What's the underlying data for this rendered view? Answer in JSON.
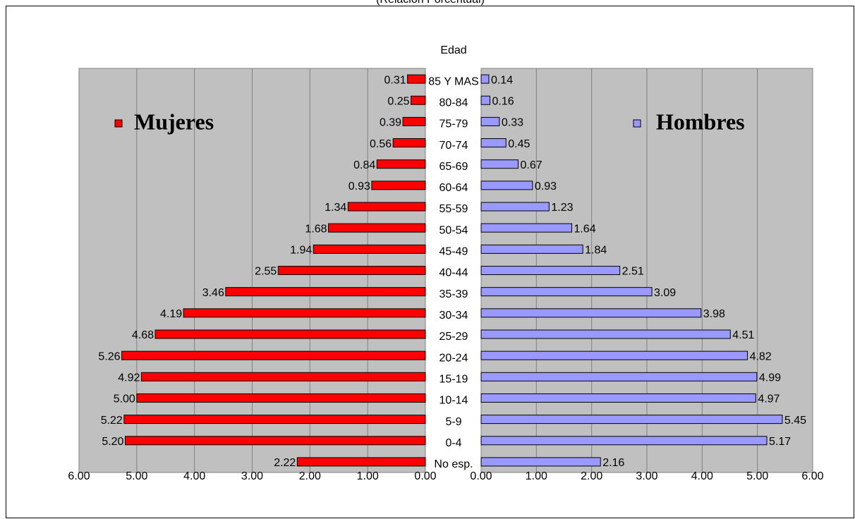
{
  "chart_data": {
    "type": "pyramid",
    "subtitle": "(Relación Porcentual)",
    "axis_label": "Edad",
    "categories": [
      "85 Y MAS",
      "80-84",
      "75-79",
      "70-74",
      "65-69",
      "60-64",
      "55-59",
      "50-54",
      "45-49",
      "40-44",
      "35-39",
      "30-34",
      "25-29",
      "20-24",
      "15-19",
      "10-14",
      "5-9",
      "0-4",
      "No esp."
    ],
    "series": [
      {
        "name": "Mujeres",
        "color": "#ff0000",
        "values": [
          0.31,
          0.25,
          0.39,
          0.56,
          0.84,
          0.93,
          1.34,
          1.68,
          1.94,
          2.55,
          3.46,
          4.19,
          4.68,
          5.26,
          4.92,
          5.0,
          5.22,
          5.2,
          2.22
        ],
        "value_labels": [
          "0.31",
          "0.25",
          "0.39",
          "0.56",
          "0.84",
          "0.93",
          "1.34",
          "1.68",
          "1.94",
          "2.55",
          "3.46",
          "4.19",
          "4.68",
          "5.26",
          "4.92",
          "5.00",
          "5.22",
          "5.20",
          "2.22"
        ]
      },
      {
        "name": "Hombres",
        "color": "#9999ff",
        "values": [
          0.14,
          0.16,
          0.33,
          0.45,
          0.67,
          0.93,
          1.23,
          1.64,
          1.84,
          2.51,
          3.09,
          3.98,
          4.51,
          4.82,
          4.99,
          4.97,
          5.45,
          5.17,
          2.16
        ],
        "value_labels": [
          "0.14",
          "0.16",
          "0.33",
          "0.45",
          "0.67",
          "0.93",
          "1.23",
          "1.64",
          "1.84",
          "2.51",
          "3.09",
          "3.98",
          "4.51",
          "4.82",
          "4.99",
          "4.97",
          "5.45",
          "5.17",
          "2.16"
        ]
      }
    ],
    "xlim": [
      0,
      6
    ],
    "xticks": [
      {
        "value": 0,
        "label": "0.00"
      },
      {
        "value": 1,
        "label": "1.00"
      },
      {
        "value": 2,
        "label": "2.00"
      },
      {
        "value": 3,
        "label": "3.00"
      },
      {
        "value": 4,
        "label": "4.00"
      },
      {
        "value": 5,
        "label": "5.00"
      },
      {
        "value": 6,
        "label": "6.00"
      }
    ],
    "grid": true
  }
}
